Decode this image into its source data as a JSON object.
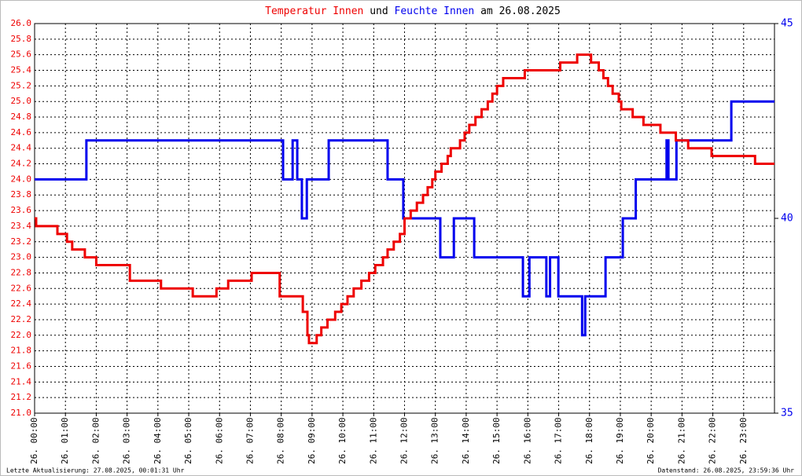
{
  "chart_data": {
    "type": "step-line",
    "title_connector": "und",
    "title_suffix": "am 26.08.2025",
    "xlim": [
      0,
      24
    ],
    "xticks": [
      {
        "value": 0,
        "label": "26. 00:00"
      },
      {
        "value": 1,
        "label": "26. 01:00"
      },
      {
        "value": 2,
        "label": "26. 02:00"
      },
      {
        "value": 3,
        "label": "26. 03:00"
      },
      {
        "value": 4,
        "label": "26. 04:00"
      },
      {
        "value": 5,
        "label": "26. 05:00"
      },
      {
        "value": 6,
        "label": "26. 06:00"
      },
      {
        "value": 7,
        "label": "26. 07:00"
      },
      {
        "value": 8,
        "label": "26. 08:00"
      },
      {
        "value": 9,
        "label": "26. 09:00"
      },
      {
        "value": 10,
        "label": "26. 10:00"
      },
      {
        "value": 11,
        "label": "26. 11:00"
      },
      {
        "value": 12,
        "label": "26. 12:00"
      },
      {
        "value": 13,
        "label": "26. 13:00"
      },
      {
        "value": 14,
        "label": "26. 14:00"
      },
      {
        "value": 15,
        "label": "26. 15:00"
      },
      {
        "value": 16,
        "label": "26. 16:00"
      },
      {
        "value": 17,
        "label": "26. 17:00"
      },
      {
        "value": 18,
        "label": "26. 18:00"
      },
      {
        "value": 19,
        "label": "26. 19:00"
      },
      {
        "value": 20,
        "label": "26. 20:00"
      },
      {
        "value": 21,
        "label": "26. 21:00"
      },
      {
        "value": 22,
        "label": "26. 22:00"
      },
      {
        "value": 23,
        "label": "26. 23:00"
      }
    ],
    "ylim": [
      21,
      26
    ],
    "yticks": [
      {
        "value": 21,
        "label": "21.0"
      },
      21.2,
      21.4,
      21.6,
      21.8,
      {
        "value": 22,
        "label": "22.0"
      },
      22.2,
      22.4,
      22.6,
      22.8,
      {
        "value": 23,
        "label": "23.0"
      },
      23.2,
      23.4,
      23.6,
      23.8,
      {
        "value": 24,
        "label": "24.0"
      },
      24.2,
      24.4,
      24.6,
      24.8,
      {
        "value": 25,
        "label": "25.0"
      },
      25.2,
      25.4,
      25.6,
      25.8,
      {
        "value": 26,
        "label": "26.0"
      }
    ],
    "y2lim": [
      35,
      45
    ],
    "y2ticks": [
      35,
      40,
      45
    ],
    "grid": true,
    "series": [
      {
        "name": "Temperatur Innen",
        "color": "#ee0000",
        "axis": "y",
        "x": [
          0,
          0.05,
          0.74,
          1.05,
          1.22,
          1.63,
          2.0,
          3.09,
          4.1,
          5.13,
          5.9,
          6.28,
          7.04,
          7.95,
          8.7,
          8.85,
          8.9,
          9.15,
          9.3,
          9.5,
          9.75,
          9.95,
          10.15,
          10.35,
          10.6,
          10.85,
          11.05,
          11.3,
          11.45,
          11.65,
          11.85,
          12.0,
          12.2,
          12.4,
          12.6,
          12.75,
          12.9,
          13.0,
          13.2,
          13.4,
          13.5,
          13.8,
          13.95,
          14.1,
          14.3,
          14.5,
          14.7,
          14.85,
          15.0,
          15.2,
          15.9,
          17.05,
          17.6,
          18.05,
          18.3,
          18.45,
          18.6,
          18.75,
          18.95,
          19.03,
          19.4,
          19.75,
          20.3,
          20.8,
          21.2,
          21.96,
          23.37,
          24
        ],
        "values": [
          23.5,
          23.4,
          23.3,
          23.2,
          23.1,
          23.0,
          22.9,
          22.7,
          22.6,
          22.5,
          22.6,
          22.7,
          22.8,
          22.5,
          22.3,
          22.0,
          21.9,
          22.0,
          22.1,
          22.2,
          22.3,
          22.4,
          22.5,
          22.6,
          22.7,
          22.8,
          22.9,
          23.0,
          23.1,
          23.2,
          23.3,
          23.5,
          23.6,
          23.7,
          23.8,
          23.9,
          24.0,
          24.1,
          24.2,
          24.3,
          24.4,
          24.5,
          24.6,
          24.7,
          24.8,
          24.9,
          25.0,
          25.1,
          25.2,
          25.3,
          25.4,
          25.5,
          25.6,
          25.5,
          25.4,
          25.3,
          25.2,
          25.1,
          25.0,
          24.9,
          24.8,
          24.7,
          24.6,
          24.5,
          24.4,
          24.3,
          24.2,
          24.2
        ]
      },
      {
        "name": "Feuchte Innen",
        "color": "#0000ee",
        "axis": "y2",
        "x": [
          0,
          1.68,
          8.06,
          8.37,
          8.52,
          8.67,
          8.83,
          9.54,
          11.45,
          11.96,
          13.16,
          13.6,
          14.26,
          15.84,
          16.05,
          16.6,
          16.72,
          16.99,
          17.76,
          17.86,
          18.52,
          19.08,
          19.5,
          20.5,
          20.56,
          20.82,
          22.6,
          24
        ],
        "values": [
          41,
          42,
          41,
          42,
          41,
          40,
          41,
          42,
          41,
          40,
          39,
          40,
          39,
          38,
          39,
          38,
          39,
          38,
          37,
          38,
          39,
          40,
          41,
          42,
          41,
          42,
          43,
          43
        ]
      }
    ],
    "footer_left": "Letzte Aktualisierung: 27.08.2025, 00:01:31 Uhr",
    "footer_right": "Datenstand: 26.08.2025, 23:59:36 Uhr"
  }
}
